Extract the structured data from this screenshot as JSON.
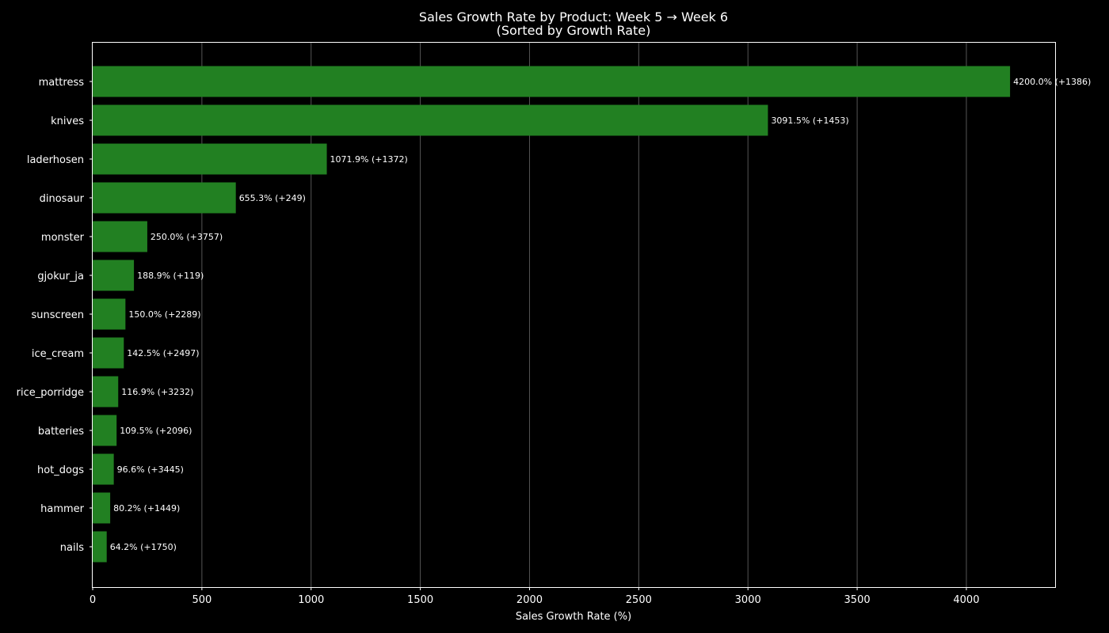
{
  "chart_data": {
    "type": "bar",
    "orientation": "horizontal",
    "title": "Sales Growth Rate by Product: Week 5 → Week 6",
    "subtitle": "(Sorted by Growth Rate)",
    "xlabel": "Sales Growth Rate (%)",
    "ylabel": "",
    "xlim": [
      0,
      4410
    ],
    "xticks": [
      0,
      500,
      1000,
      1500,
      2000,
      2500,
      3000,
      3500,
      4000
    ],
    "grid": "vertical",
    "bar_color": "#228022",
    "background": "#000000",
    "grid_color": "#555555",
    "categories": [
      "mattress",
      "knives",
      "laderhosen",
      "dinosaur",
      "monster",
      "gjokur_ja",
      "sunscreen",
      "ice_cream",
      "rice_porridge",
      "batteries",
      "hot_dogs",
      "hammer",
      "nails"
    ],
    "values": [
      4200.0,
      3091.5,
      1071.9,
      655.3,
      250.0,
      188.9,
      150.0,
      142.5,
      116.9,
      109.5,
      96.6,
      80.2,
      64.2
    ],
    "labels": [
      "4200.0% (+1386)",
      "3091.5% (+1453)",
      "1071.9% (+1372)",
      "655.3% (+249)",
      "250.0% (+3757)",
      "188.9% (+119)",
      "150.0% (+2289)",
      "142.5% (+2497)",
      "116.9% (+3232)",
      "109.5% (+2096)",
      "96.6% (+3445)",
      "80.2% (+1449)",
      "64.2% (+1750)"
    ]
  }
}
